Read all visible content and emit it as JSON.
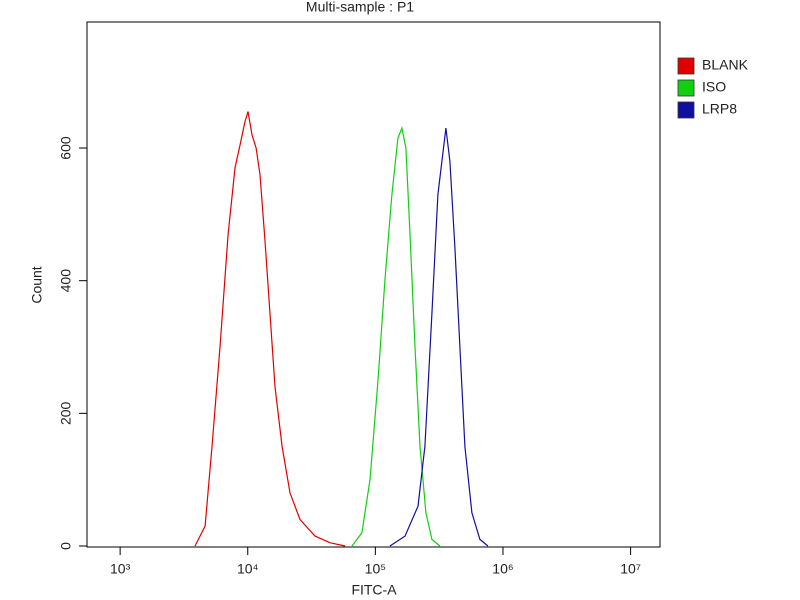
{
  "chart_data": {
    "type": "histogram-line",
    "title": "Multi-sample : P1",
    "x_label": "FITC-A",
    "y_label": "Count",
    "log_x": true,
    "xlim": [
      550,
      17000000
    ],
    "xticks": [
      {
        "value": 1000,
        "label": "10³"
      },
      {
        "value": 10000,
        "label": "10⁴"
      },
      {
        "value": 100000,
        "label": "10⁵"
      },
      {
        "value": 1000000,
        "label": "10⁶"
      },
      {
        "value": 10000000,
        "label": "10⁷"
      }
    ],
    "ylim": [
      0,
      790
    ],
    "yticks": [
      0,
      200,
      400,
      600
    ],
    "legend": "outside-right",
    "series": [
      {
        "name": "BLANK",
        "color": "#e00000",
        "x": [
          3860,
          4630,
          5250,
          6060,
          7010,
          7950,
          8710,
          9520,
          10050,
          10800,
          11620,
          12480,
          13650,
          14950,
          16360,
          18570,
          21450,
          25690,
          33650,
          44070,
          57770
        ],
        "values": [
          0,
          30,
          150,
          300,
          470,
          570,
          605,
          640,
          655,
          620,
          600,
          560,
          460,
          350,
          240,
          150,
          80,
          40,
          15,
          5,
          0
        ]
      },
      {
        "name": "ISO",
        "color": "#10d010",
        "x": [
          65600,
          78500,
          90800,
          104800,
          118800,
          134800,
          150300,
          161500,
          173600,
          186700,
          204300,
          223600,
          249000,
          277300,
          320400
        ],
        "values": [
          0,
          20,
          100,
          250,
          400,
          530,
          615,
          630,
          600,
          470,
          300,
          150,
          50,
          10,
          0
        ]
      },
      {
        "name": "LRP8",
        "color": "#1010a0",
        "x": [
          130000,
          170600,
          215700,
          244500,
          277300,
          309000,
          332000,
          357300,
          383900,
          420000,
          459500,
          503100,
          570700,
          659000,
          762000
        ],
        "values": [
          0,
          15,
          60,
          150,
          350,
          530,
          580,
          630,
          580,
          450,
          300,
          150,
          50,
          10,
          0
        ]
      }
    ]
  }
}
